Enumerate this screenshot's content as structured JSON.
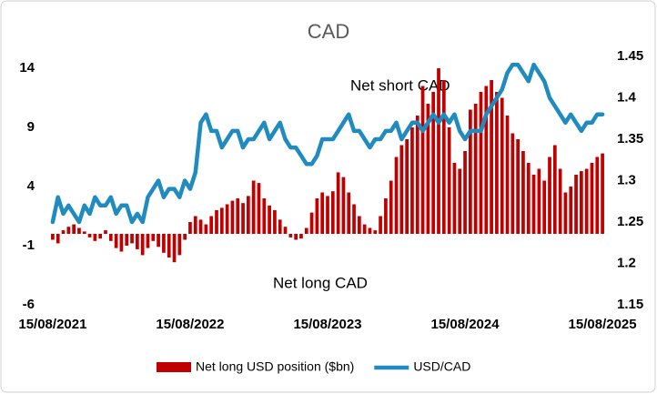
{
  "chart_data": {
    "type": "bar_line",
    "title": "CAD",
    "categories": [
      "15/08/2021",
      null,
      null,
      null,
      null,
      null,
      null,
      null,
      null,
      null,
      null,
      null,
      null,
      null,
      null,
      null,
      null,
      null,
      null,
      null,
      null,
      null,
      null,
      null,
      null,
      null,
      "15/08/2022",
      null,
      null,
      null,
      null,
      null,
      null,
      null,
      null,
      null,
      null,
      null,
      null,
      null,
      null,
      null,
      null,
      null,
      null,
      null,
      null,
      null,
      null,
      null,
      null,
      null,
      "15/08/2023",
      null,
      null,
      null,
      null,
      null,
      null,
      null,
      null,
      null,
      null,
      null,
      null,
      null,
      null,
      null,
      null,
      null,
      null,
      null,
      null,
      null,
      null,
      null,
      null,
      null,
      "15/08/2024",
      null,
      null,
      null,
      null,
      null,
      null,
      null,
      null,
      null,
      null,
      null,
      null,
      null,
      null,
      null,
      null,
      null,
      null,
      null,
      null,
      null,
      null,
      null,
      null,
      null,
      "15/08/2025"
    ],
    "series": [
      {
        "name": "Net long USD position ($bn)",
        "color": "#c00000",
        "kind": "bar",
        "values": [
          -0.5,
          -0.8,
          0.3,
          0.6,
          0.8,
          0.5,
          0.2,
          -0.3,
          -0.6,
          -0.4,
          0.3,
          -0.6,
          -1.2,
          -1.5,
          -1.0,
          -0.8,
          -1.3,
          -1.8,
          -1.2,
          -0.6,
          -1.1,
          -1.6,
          -2.0,
          -2.4,
          -1.8,
          -0.5,
          1.0,
          1.5,
          1.2,
          0.8,
          1.5,
          2.0,
          2.2,
          2.5,
          2.8,
          3.0,
          2.6,
          3.2,
          4.5,
          4.3,
          3.0,
          2.4,
          2.0,
          1.2,
          0.6,
          -0.3,
          -0.5,
          -0.4,
          0.5,
          1.8,
          3.0,
          3.5,
          3.2,
          3.6,
          5.2,
          4.8,
          3.5,
          2.5,
          1.5,
          0.8,
          0.5,
          0.3,
          1.5,
          3.0,
          4.5,
          6.5,
          7.5,
          8.0,
          9.0,
          10.0,
          12.5,
          11.0,
          12.0,
          14.0,
          13.0,
          9.0,
          6.0,
          5.5,
          7.0,
          10.5,
          11.0,
          12.0,
          12.5,
          13.0,
          12.0,
          11.5,
          10.0,
          8.5,
          8.0,
          7.0,
          6.0,
          5.0,
          5.5,
          4.5,
          6.5,
          7.5,
          5.5,
          3.5,
          4.0,
          5.0,
          5.3,
          5.5,
          6.0,
          6.5,
          6.8
        ]
      },
      {
        "name": "USD/CAD",
        "color": "#1f8bbf",
        "kind": "line",
        "axis": "y2",
        "values": [
          1.25,
          1.28,
          1.26,
          1.27,
          1.26,
          1.25,
          1.27,
          1.26,
          1.28,
          1.27,
          1.27,
          1.28,
          1.26,
          1.27,
          1.27,
          1.25,
          1.26,
          1.25,
          1.28,
          1.29,
          1.3,
          1.28,
          1.29,
          1.29,
          1.28,
          1.3,
          1.29,
          1.31,
          1.37,
          1.38,
          1.36,
          1.36,
          1.34,
          1.35,
          1.36,
          1.36,
          1.34,
          1.35,
          1.35,
          1.36,
          1.37,
          1.35,
          1.36,
          1.37,
          1.35,
          1.34,
          1.34,
          1.33,
          1.32,
          1.32,
          1.33,
          1.35,
          1.35,
          1.35,
          1.36,
          1.37,
          1.38,
          1.36,
          1.36,
          1.35,
          1.34,
          1.35,
          1.35,
          1.36,
          1.36,
          1.37,
          1.35,
          1.36,
          1.37,
          1.37,
          1.36,
          1.37,
          1.38,
          1.37,
          1.38,
          1.37,
          1.38,
          1.36,
          1.35,
          1.36,
          1.36,
          1.36,
          1.38,
          1.39,
          1.4,
          1.41,
          1.43,
          1.44,
          1.44,
          1.43,
          1.42,
          1.44,
          1.43,
          1.42,
          1.4,
          1.39,
          1.38,
          1.37,
          1.38,
          1.37,
          1.36,
          1.37,
          1.37,
          1.38,
          1.38
        ]
      }
    ],
    "ylim": [
      -6,
      15
    ],
    "yticks": [
      -6,
      -1,
      4,
      9,
      14
    ],
    "y2lim": [
      1.15,
      1.45
    ],
    "y2ticks": [
      1.15,
      1.2,
      1.25,
      1.3,
      1.35,
      1.4,
      1.45
    ],
    "annotations": [
      "Net short CAD",
      "Net long CAD"
    ],
    "legend": "bottom"
  }
}
